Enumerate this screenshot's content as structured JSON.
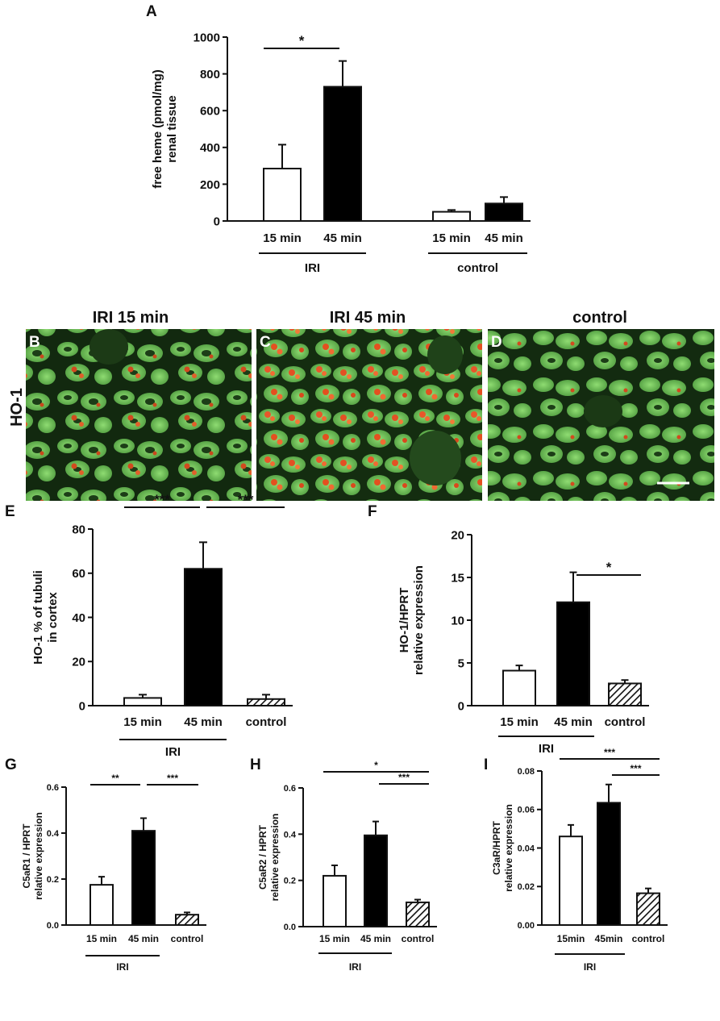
{
  "panels": {
    "A": "A",
    "B": "B",
    "C": "C",
    "D": "D",
    "E": "E",
    "F": "F",
    "G": "G",
    "H": "H",
    "I": "I"
  },
  "micrographs": {
    "row_label": "HO-1",
    "titles": [
      "IRI 15 min",
      "IRI 45 min",
      "control"
    ],
    "letters": [
      "B",
      "C",
      "D"
    ]
  },
  "chart_data": [
    {
      "id": "A",
      "type": "bar",
      "ylabel": [
        "free heme (pmol/mg)",
        "renal tissue"
      ],
      "ylim": [
        0,
        1000
      ],
      "yticks": [
        "0",
        "200",
        "400",
        "600",
        "800",
        "1000"
      ],
      "ytick_values": [
        0,
        200,
        400,
        600,
        800,
        1000
      ],
      "categories": [
        "15 min",
        "45 min",
        "15 min",
        "45 min"
      ],
      "values": [
        285,
        730,
        50,
        95
      ],
      "errors": [
        130,
        140,
        10,
        35
      ],
      "fills": [
        "open",
        "solid",
        "open",
        "solid"
      ],
      "groups": [
        {
          "label": "IRI",
          "from": 0,
          "to": 1
        },
        {
          "label": "control",
          "from": 2,
          "to": 3
        }
      ],
      "significance": [
        {
          "from": 0,
          "to": 1,
          "label": "*"
        }
      ]
    },
    {
      "id": "E",
      "type": "bar",
      "ylabel": [
        "HO-1 % of tubuli",
        "in cortex"
      ],
      "ylim": [
        0,
        80
      ],
      "yticks": [
        "0",
        "20",
        "40",
        "60",
        "80"
      ],
      "ytick_values": [
        0,
        20,
        40,
        60,
        80
      ],
      "categories": [
        "15 min",
        "45 min",
        "control"
      ],
      "values": [
        3.5,
        62,
        3
      ],
      "errors": [
        1.5,
        12,
        2
      ],
      "fills": [
        "open",
        "solid",
        "hatch"
      ],
      "groups": [
        {
          "label": "IRI",
          "from": 0,
          "to": 1
        }
      ],
      "significance": [
        {
          "from": 0,
          "to": 1,
          "label": "***"
        },
        {
          "from": 1,
          "to": 2,
          "label": "***"
        }
      ]
    },
    {
      "id": "F",
      "type": "bar",
      "ylabel": [
        "HO-1/HPRT",
        "relative expression"
      ],
      "ylim": [
        0,
        20
      ],
      "yticks": [
        "0",
        "5",
        "10",
        "15",
        "20"
      ],
      "ytick_values": [
        0,
        5,
        10,
        15,
        20
      ],
      "categories": [
        "15 min",
        "45 min",
        "control"
      ],
      "values": [
        4.1,
        12.1,
        2.6
      ],
      "errors": [
        0.6,
        3.5,
        0.4
      ],
      "fills": [
        "open",
        "solid",
        "hatch"
      ],
      "groups": [
        {
          "label": "IRI",
          "from": 0,
          "to": 1
        }
      ],
      "significance": [
        {
          "from": 1,
          "to": 2,
          "label": "*"
        }
      ]
    },
    {
      "id": "G",
      "type": "bar",
      "ylabel": [
        "C5aR1 / HPRT",
        "relative expression"
      ],
      "ylim": [
        0,
        0.6
      ],
      "yticks": [
        "0.0",
        "0.2",
        "0.4",
        "0.6"
      ],
      "ytick_values": [
        0,
        0.2,
        0.4,
        0.6
      ],
      "categories": [
        "15 min",
        "45 min",
        "control"
      ],
      "values": [
        0.175,
        0.41,
        0.045
      ],
      "errors": [
        0.035,
        0.055,
        0.01
      ],
      "fills": [
        "open",
        "solid",
        "hatch"
      ],
      "groups": [
        {
          "label": "IRI",
          "from": 0,
          "to": 1
        }
      ],
      "significance": [
        {
          "from": 0,
          "to": 1,
          "label": "**"
        },
        {
          "from": 1,
          "to": 2,
          "label": "***"
        }
      ]
    },
    {
      "id": "H",
      "type": "bar",
      "ylabel": [
        "C5aR2 / HPRT",
        "relative expression"
      ],
      "ylim": [
        0,
        0.6
      ],
      "yticks": [
        "0.0",
        "0.2",
        "0.4",
        "0.6"
      ],
      "ytick_values": [
        0,
        0.2,
        0.4,
        0.6
      ],
      "categories": [
        "15 min",
        "45 min",
        "control"
      ],
      "values": [
        0.22,
        0.395,
        0.105
      ],
      "errors": [
        0.045,
        0.06,
        0.012
      ],
      "fills": [
        "open",
        "solid",
        "hatch"
      ],
      "groups": [
        {
          "label": "IRI",
          "from": 0,
          "to": 1
        }
      ],
      "significance": [
        {
          "from": 0,
          "to": 2,
          "label": "*"
        },
        {
          "from": 1,
          "to": 2,
          "label": "***"
        }
      ]
    },
    {
      "id": "I",
      "type": "bar",
      "ylabel": [
        "C3aR/HPRT",
        "relative expression"
      ],
      "ylim": [
        0,
        0.08
      ],
      "yticks": [
        "0.00",
        "0.02",
        "0.04",
        "0.06",
        "0.08"
      ],
      "ytick_values": [
        0,
        0.02,
        0.04,
        0.06,
        0.08
      ],
      "categories": [
        "15min",
        "45min",
        "control"
      ],
      "values": [
        0.046,
        0.0635,
        0.0165
      ],
      "errors": [
        0.006,
        0.0095,
        0.0025
      ],
      "fills": [
        "open",
        "solid",
        "hatch"
      ],
      "groups": [
        {
          "label": "IRI",
          "from": 0,
          "to": 1
        }
      ],
      "significance": [
        {
          "from": 0,
          "to": 2,
          "label": "***"
        },
        {
          "from": 1,
          "to": 2,
          "label": "***"
        }
      ]
    }
  ]
}
